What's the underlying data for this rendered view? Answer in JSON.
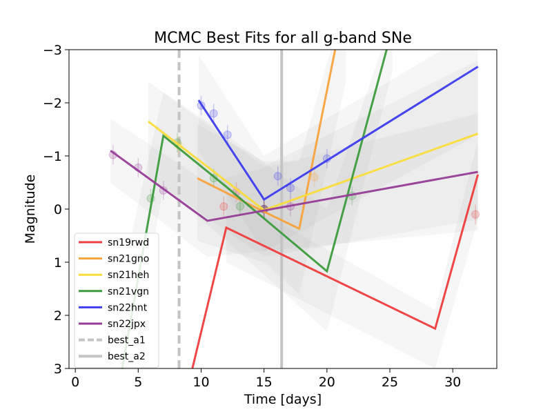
{
  "chart_data": {
    "type": "line",
    "title": "MCMC Best Fits for all g-band SNe",
    "xlabel": "Time [days]",
    "ylabel": "Magnitude",
    "xlim": [
      -0.5,
      33.5
    ],
    "ylim": [
      3,
      -3
    ],
    "y_inverted": true,
    "xticks": [
      0,
      5,
      10,
      15,
      20,
      25,
      30
    ],
    "xtick_labels": [
      "0",
      "5",
      "10",
      "15",
      "20",
      "25",
      "30"
    ],
    "yticks": [
      -3,
      -2,
      -1,
      0,
      1,
      2,
      3
    ],
    "ytick_labels": [
      "−3",
      "−2",
      "−1",
      "0",
      "1",
      "2",
      "3"
    ],
    "grid": false,
    "legend_position": "lower-left",
    "series": [
      {
        "name": "sn19rwd",
        "color": "#f03c3c",
        "line": [
          [
            9,
            3.3
          ],
          [
            12,
            0.35
          ],
          [
            28.6,
            2.25
          ],
          [
            32,
            -0.65
          ]
        ],
        "points": [
          [
            11.8,
            -0.05
          ],
          [
            12.8,
            -0.32
          ],
          [
            15,
            0
          ],
          [
            31.8,
            0.1
          ]
        ],
        "band": [
          [
            [
              12,
              -0.3
            ],
            [
              28.6,
              1.9
            ],
            [
              32,
              -1.3
            ]
          ],
          [
            [
              12,
              1.0
            ],
            [
              28.6,
              3.0
            ],
            [
              32,
              0.2
            ]
          ]
        ]
      },
      {
        "name": "sn21gno",
        "color": "#f8a23c",
        "line": [
          [
            9.7,
            -0.58
          ],
          [
            15,
            0.05
          ],
          [
            17.8,
            0.37
          ],
          [
            21.5,
            -4.0
          ]
        ],
        "points": [
          [
            15,
            0
          ],
          [
            19,
            -0.6
          ]
        ],
        "band": [
          [
            [
              9.7,
              -1.6
            ],
            [
              15,
              -0.9
            ],
            [
              17.8,
              -0.9
            ],
            [
              21.5,
              -4.0
            ]
          ],
          [
            [
              9.7,
              0.6
            ],
            [
              15,
              1.0
            ],
            [
              17.8,
              1.6
            ],
            [
              21.5,
              -2.4
            ]
          ]
        ]
      },
      {
        "name": "sn21heh",
        "color": "#fadc3c",
        "line": [
          [
            5.8,
            -1.65
          ],
          [
            15,
            0.02
          ],
          [
            32,
            -1.42
          ]
        ],
        "points": [
          [
            8.2,
            -1.2
          ],
          [
            15,
            0
          ]
        ],
        "band": [
          [
            [
              5.8,
              -2.4
            ],
            [
              15,
              -0.8
            ],
            [
              32,
              -2.8
            ]
          ],
          [
            [
              5.8,
              -0.6
            ],
            [
              15,
              0.9
            ],
            [
              32,
              0.2
            ]
          ]
        ]
      },
      {
        "name": "sn21vgn",
        "color": "#3c9b3c",
        "line": [
          [
            3.5,
            3.3
          ],
          [
            7,
            -1.38
          ],
          [
            12,
            -0.42
          ],
          [
            20,
            1.17
          ],
          [
            25.2,
            -3.4
          ]
        ],
        "points": [
          [
            6,
            -0.2
          ],
          [
            8.1,
            -1.25
          ],
          [
            11,
            -0.58
          ],
          [
            13.1,
            -0.05
          ],
          [
            15,
            0
          ],
          [
            22,
            -0.25
          ]
        ],
        "band": [
          [
            [
              3.5,
              1.5
            ],
            [
              7,
              -2.2
            ],
            [
              12,
              -1.4
            ],
            [
              20,
              0.0
            ],
            [
              25.2,
              -3.6
            ]
          ],
          [
            [
              3.5,
              4.2
            ],
            [
              7,
              -0.4
            ],
            [
              12,
              0.6
            ],
            [
              20,
              2.3
            ],
            [
              25.2,
              -2.6
            ]
          ]
        ]
      },
      {
        "name": "sn22hnt",
        "color": "#3c3cf0",
        "line": [
          [
            9.8,
            -2.05
          ],
          [
            15,
            -0.18
          ],
          [
            32,
            -2.68
          ]
        ],
        "points": [
          [
            10,
            -1.95
          ],
          [
            11,
            -1.8
          ],
          [
            12.1,
            -1.4
          ],
          [
            15,
            0
          ],
          [
            16.1,
            -0.62
          ],
          [
            17.1,
            -0.4
          ],
          [
            20,
            -0.95
          ]
        ],
        "band": [
          [
            [
              9.8,
              -2.9
            ],
            [
              15,
              -1.0
            ],
            [
              32,
              -3.4
            ]
          ],
          [
            [
              9.8,
              -1.1
            ],
            [
              15,
              0.8
            ],
            [
              32,
              -1.4
            ]
          ]
        ]
      },
      {
        "name": "sn22jpx",
        "color": "#963c96",
        "line": [
          [
            2.8,
            -1.1
          ],
          [
            10.5,
            0.22
          ],
          [
            32,
            -0.7
          ]
        ],
        "points": [
          [
            3,
            -1.02
          ],
          [
            5,
            -0.78
          ],
          [
            7,
            -0.35
          ],
          [
            15,
            0
          ],
          [
            17.1,
            -0.05
          ]
        ],
        "band": [
          [
            [
              2.8,
              -1.7
            ],
            [
              10.5,
              -0.5
            ],
            [
              32,
              -1.8
            ]
          ],
          [
            [
              2.8,
              -0.5
            ],
            [
              10.5,
              0.9
            ],
            [
              32,
              0.4
            ]
          ]
        ]
      }
    ],
    "vlines": [
      {
        "name": "best_a1",
        "x": 8.25,
        "color": "#c4c4c4",
        "dash": true
      },
      {
        "name": "best_a2",
        "x": 16.4,
        "color": "#c4c4c4",
        "dash": false
      }
    ]
  }
}
